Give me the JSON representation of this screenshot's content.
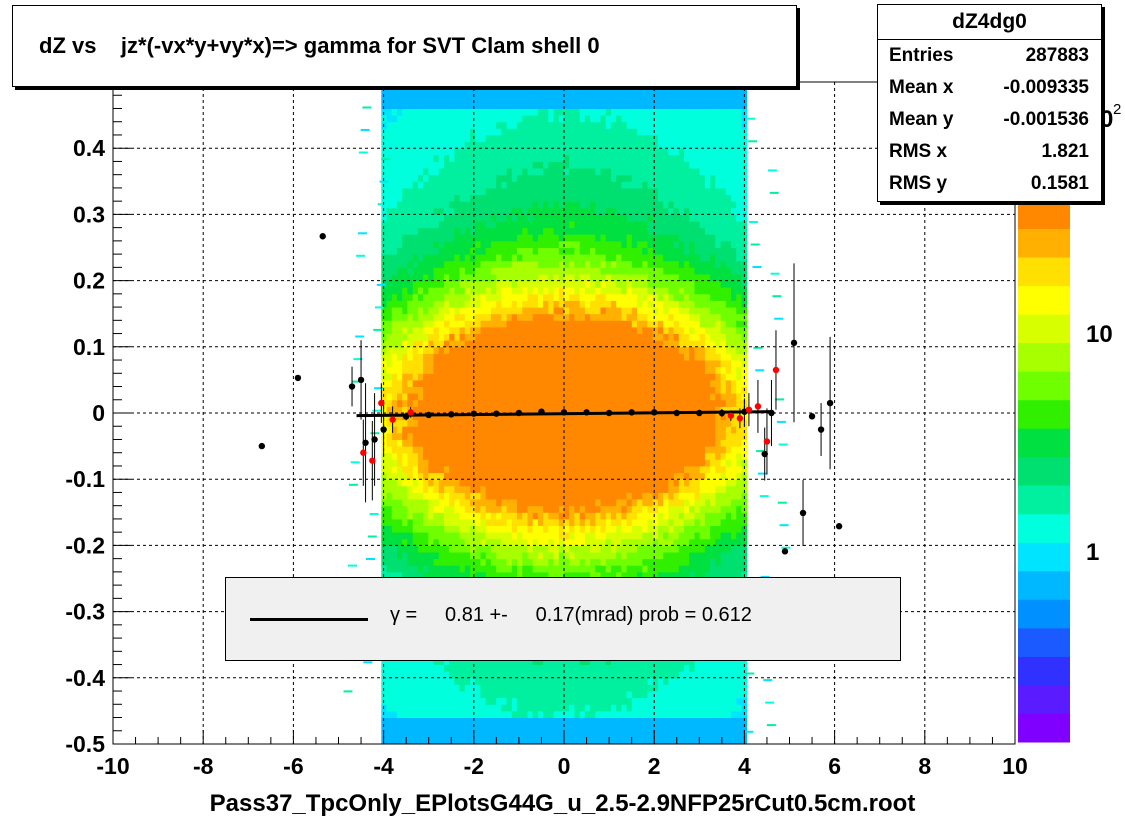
{
  "title": "dZ vs    jz*(-vx*y+vy*x)=> gamma for SVT Clam shell 0",
  "stats": {
    "name": "dZ4dg0",
    "rows": [
      {
        "label": "Entries",
        "value": "287883"
      },
      {
        "label": "Mean x",
        "value": "-0.009335"
      },
      {
        "label": "Mean y",
        "value": "-0.001536"
      },
      {
        "label": "RMS x",
        "value": "1.821"
      },
      {
        "label": "RMS y",
        "value": "0.1581"
      }
    ]
  },
  "legend": {
    "text": "γ =     0.81 +-     0.17(mrad) prob = 0.612"
  },
  "colors": {
    "profile_black": "#000000",
    "profile_red": "#ff0000",
    "fit_line": "#000000",
    "legend_bg": "#f0f0f0"
  },
  "chart_data": {
    "type": "heatmap",
    "xlabel": "Pass37_TpcOnly_EPlotsG44G_u_2.5-2.9NFP25rCut0.5cm.root",
    "ylabel": "",
    "xlim": [
      -10,
      10
    ],
    "ylim": [
      -0.5,
      0.5
    ],
    "xticks": [
      "-10",
      "-8",
      "-6",
      "-4",
      "-2",
      "0",
      "2",
      "4",
      "6",
      "8",
      "10"
    ],
    "yticks": [
      "-0.5",
      "-0.4",
      "-0.3",
      "-0.2",
      "-0.1",
      "0",
      "0.1",
      "0.2",
      "0.3",
      "0.4"
    ],
    "grid": true,
    "z_scale": "log",
    "z_ticks": [
      "1",
      "10"
    ],
    "z_cut_label": "0",
    "z_cut_exponent": "2",
    "palette": [
      "#8000ff",
      "#5a1bff",
      "#3030ff",
      "#1a5aff",
      "#0090ff",
      "#00b8ff",
      "#00e4ff",
      "#00ffdc",
      "#00f0a0",
      "#00e070",
      "#00e040",
      "#30f000",
      "#70ff00",
      "#a8ff00",
      "#d8ff00",
      "#ffff00",
      "#ffe000",
      "#ffb000",
      "#ff8800"
    ],
    "series": [
      {
        "name": "profile",
        "points": [
          {
            "x": -6.7,
            "y": -0.05,
            "err": 0.0
          },
          {
            "x": -5.9,
            "y": 0.053,
            "err": 0.0
          },
          {
            "x": -5.35,
            "y": 0.267,
            "err": 0.0
          },
          {
            "x": -4.7,
            "y": 0.04,
            "err": 0.03
          },
          {
            "x": -4.5,
            "y": 0.05,
            "err": 0.06
          },
          {
            "x": -4.4,
            "y": -0.045,
            "err": 0.09
          },
          {
            "x": -4.2,
            "y": -0.04,
            "err": 0.07
          },
          {
            "x": -4.0,
            "y": -0.025,
            "err": 0.04
          },
          {
            "x": -3.5,
            "y": -0.005,
            "err": 0.006
          },
          {
            "x": -3.0,
            "y": -0.003,
            "err": 0.004
          },
          {
            "x": -2.5,
            "y": -0.002,
            "err": 0.003
          },
          {
            "x": -2.0,
            "y": -0.001,
            "err": 0.002
          },
          {
            "x": -1.5,
            "y": -0.001,
            "err": 0.002
          },
          {
            "x": -1.0,
            "y": 0.0,
            "err": 0.002
          },
          {
            "x": -0.5,
            "y": 0.002,
            "err": 0.002
          },
          {
            "x": 0.0,
            "y": 0.001,
            "err": 0.002
          },
          {
            "x": 0.5,
            "y": 0.001,
            "err": 0.002
          },
          {
            "x": 1.0,
            "y": 0.0,
            "err": 0.002
          },
          {
            "x": 1.5,
            "y": 0.001,
            "err": 0.002
          },
          {
            "x": 2.0,
            "y": 0.001,
            "err": 0.002
          },
          {
            "x": 2.5,
            "y": 0.0,
            "err": 0.003
          },
          {
            "x": 3.0,
            "y": 0.0,
            "err": 0.004
          },
          {
            "x": 3.5,
            "y": 0.0,
            "err": 0.006
          },
          {
            "x": 4.0,
            "y": 0.002,
            "err": 0.02
          },
          {
            "x": 4.45,
            "y": -0.062,
            "err": 0.04
          },
          {
            "x": 4.6,
            "y": 0.0,
            "err": 0.05
          },
          {
            "x": 4.9,
            "y": -0.209,
            "err": 0.0
          },
          {
            "x": 5.1,
            "y": 0.106,
            "err": 0.12
          },
          {
            "x": 5.3,
            "y": -0.151,
            "err": 0.05
          },
          {
            "x": 5.5,
            "y": -0.005,
            "err": 0.0
          },
          {
            "x": 5.7,
            "y": -0.025,
            "err": 0.04
          },
          {
            "x": 5.9,
            "y": 0.015,
            "err": 0.1
          },
          {
            "x": 6.1,
            "y": -0.171,
            "err": 0.0
          }
        ]
      },
      {
        "name": "profile-red",
        "points": [
          {
            "x": -4.45,
            "y": -0.06,
            "err": 0.05
          },
          {
            "x": -4.25,
            "y": -0.072,
            "err": 0.06
          },
          {
            "x": -4.05,
            "y": 0.015,
            "err": 0.03
          },
          {
            "x": -3.8,
            "y": -0.01,
            "err": 0.02
          },
          {
            "x": -3.4,
            "y": 0.001,
            "err": 0.008
          },
          {
            "x": 3.7,
            "y": -0.004,
            "err": 0.008
          },
          {
            "x": 3.9,
            "y": -0.008,
            "err": 0.015
          },
          {
            "x": 4.1,
            "y": 0.005,
            "err": 0.025
          },
          {
            "x": 4.3,
            "y": 0.01,
            "err": 0.04
          },
          {
            "x": 4.5,
            "y": -0.043,
            "err": 0.05
          },
          {
            "x": 4.7,
            "y": 0.065,
            "err": 0.06
          }
        ]
      }
    ],
    "fit": {
      "x": [
        -4.6,
        4.6
      ],
      "y": [
        -0.004,
        0.002
      ]
    }
  }
}
